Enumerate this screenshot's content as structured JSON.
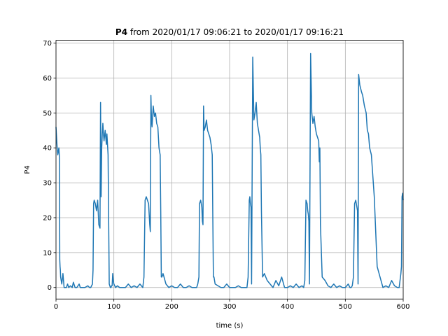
{
  "chart_data": {
    "type": "line",
    "title_bold": "P4",
    "title_rest": " from 2020/01/17 09:06:21 to 2020/01/17 09:16:21",
    "xlabel": "time (s)",
    "ylabel": "P4",
    "xlim": [
      0,
      600
    ],
    "ylim": [
      -3.3,
      70.8
    ],
    "xticks": [
      "0",
      "100",
      "200",
      "300",
      "400",
      "500",
      "600"
    ],
    "yticks": [
      "0",
      "10",
      "20",
      "30",
      "40",
      "50",
      "60",
      "70"
    ],
    "grid": true,
    "color": "#1f77b4",
    "series": [
      {
        "x": [
          0,
          1,
          2,
          3,
          4,
          5,
          6,
          6.5,
          7,
          7.5,
          8,
          9,
          10,
          12,
          14,
          16,
          18,
          20,
          22,
          25,
          28,
          30,
          33,
          36,
          40,
          42,
          45,
          48,
          50,
          55,
          58,
          60,
          63,
          64,
          65,
          66,
          68,
          70,
          72,
          74,
          76,
          77,
          78,
          79,
          80,
          81,
          82,
          83,
          85,
          87,
          88,
          90,
          92,
          94,
          95,
          96,
          97,
          98,
          99,
          100,
          103,
          106,
          110,
          115,
          120,
          125,
          130,
          135,
          140,
          145,
          150,
          152,
          154,
          156,
          158,
          160,
          162,
          163,
          164,
          165,
          166,
          168,
          170,
          172,
          174,
          176,
          178,
          180,
          181,
          182,
          183,
          185,
          190,
          195,
          200,
          205,
          210,
          215,
          220,
          225,
          230,
          235,
          240,
          243,
          245,
          247,
          248,
          250,
          252,
          253,
          254,
          255,
          256,
          258,
          260,
          262,
          264,
          266,
          268,
          270,
          271,
          272,
          273,
          275,
          280,
          285,
          290,
          295,
          300,
          305,
          310,
          315,
          320,
          325,
          330,
          332,
          334,
          335,
          336,
          337,
          338,
          340,
          342,
          344,
          346,
          348,
          350,
          352,
          353,
          354,
          355,
          357,
          360,
          365,
          370,
          375,
          380,
          385,
          390,
          395,
          400,
          405,
          410,
          415,
          420,
          425,
          428,
          430,
          432,
          434,
          435,
          436,
          437,
          438,
          440,
          442,
          444,
          446,
          448,
          450,
          452,
          454,
          455,
          456,
          457,
          460,
          465,
          470,
          475,
          480,
          485,
          490,
          495,
          500,
          505,
          508,
          510,
          512,
          514,
          516,
          518,
          520,
          521,
          522,
          523,
          525,
          528,
          530,
          533,
          536,
          538,
          540,
          542,
          545,
          550,
          555,
          560,
          565,
          570,
          575,
          580,
          585,
          590,
          593,
          596,
          597,
          598,
          599,
          600
        ],
        "y": [
          46,
          43,
          40,
          38,
          39,
          40,
          37,
          8,
          6,
          5,
          3,
          2,
          1,
          4,
          0,
          0,
          0,
          1,
          0,
          0.5,
          0,
          1.5,
          0,
          0,
          1,
          0,
          0,
          0,
          0,
          0.5,
          0,
          0,
          1,
          5,
          24,
          25,
          24,
          22,
          25,
          18,
          17,
          53,
          26,
          40,
          44,
          47,
          44,
          42,
          45,
          41,
          44,
          38,
          1,
          0,
          0,
          0.5,
          0.5,
          4,
          2,
          1,
          0,
          0.5,
          0,
          0,
          0,
          1,
          0,
          0.5,
          0,
          1,
          0,
          3,
          25,
          26,
          25,
          24,
          18,
          16,
          55,
          48,
          46,
          52,
          49,
          50,
          47,
          46,
          40,
          38,
          22,
          3,
          3,
          4,
          1,
          0,
          0.5,
          0,
          0,
          1,
          0,
          0,
          0.5,
          0,
          0,
          0,
          1,
          3,
          24,
          25,
          23,
          19,
          18,
          52,
          45,
          46,
          48,
          45,
          44,
          43,
          41,
          38,
          20,
          3,
          3,
          1,
          0.5,
          0,
          0,
          1,
          0,
          0,
          0,
          0.5,
          0,
          0,
          0,
          3,
          25,
          26,
          24,
          23,
          1,
          66,
          48,
          50,
          53,
          47,
          45,
          43,
          40,
          38,
          22,
          3,
          4,
          2,
          1,
          0,
          2,
          0.5,
          3,
          0,
          0,
          0.5,
          0,
          1,
          0,
          0.5,
          0,
          2,
          25,
          24,
          22,
          21,
          19,
          1,
          67,
          50,
          47,
          49,
          46,
          44,
          43,
          42,
          36,
          40,
          18,
          3,
          2,
          0.5,
          0,
          1,
          0,
          0.5,
          0,
          0,
          1,
          0,
          0,
          0.5,
          3,
          24,
          25,
          23,
          22,
          1,
          61,
          58,
          56,
          55,
          52,
          50,
          45,
          44,
          40,
          38,
          26,
          6,
          3,
          0,
          0.5,
          0,
          2,
          0.5,
          0,
          0,
          4,
          6,
          26,
          27,
          25
        ]
      }
    ]
  }
}
